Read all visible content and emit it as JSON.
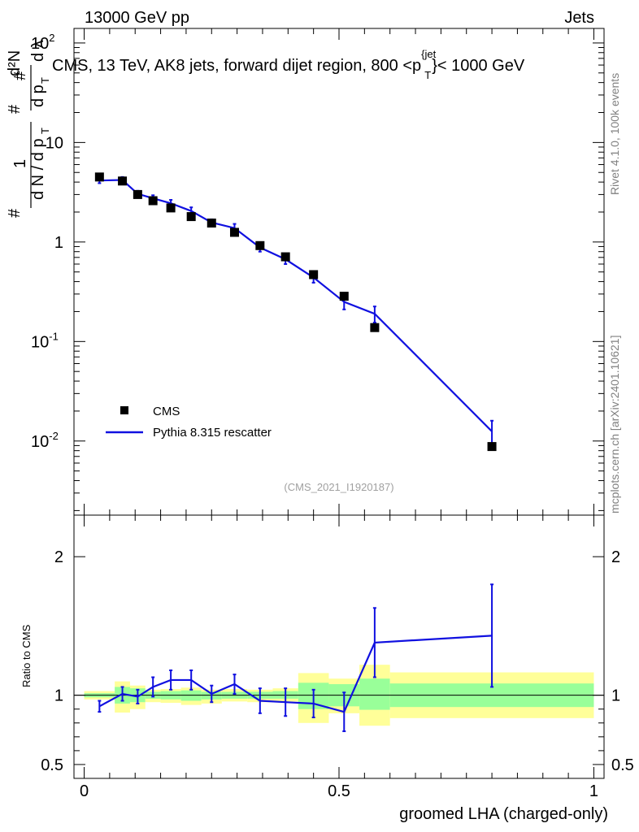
{
  "header": {
    "beam_label": "13000 GeV pp",
    "process_label": "Jets"
  },
  "side": {
    "rivet_label": "Rivet 4.1.0,  100k events",
    "source_label": "mcplots.cern.ch [arXiv:2401.10621]"
  },
  "colors": {
    "mc": "#1010e0",
    "data": "#000000",
    "band_inner": "#99ff99",
    "band_outer": "#ffff99"
  },
  "chart_data": [
    {
      "type": "scatter",
      "title": "CMS, 13 TeV, AK8 jets, forward dijet region, 800 <p_T^{jet}< 1000 GeV",
      "title_main": "CMS, 13 TeV, AK8 jets, forward dijet region, 800 <p",
      "title_sup": "{jet",
      "title_sub": "T",
      "title_tail": "}< 1000 GeV",
      "watermark": "(CMS_2021_I1920187)",
      "ylabel": "1/dN/dp_T # d^2N/(dp_T dλ)",
      "yscale": "log",
      "ylim": [
        0.0018,
        140
      ],
      "xlim": [
        -0.02,
        1.02
      ],
      "ytick_labels": [
        {
          "value": 0.01,
          "base": "10",
          "exp": "-2"
        },
        {
          "value": 0.1,
          "base": "10",
          "exp": "-1"
        },
        {
          "value": 1,
          "base": "1",
          "exp": ""
        },
        {
          "value": 10,
          "base": "10",
          "exp": ""
        },
        {
          "value": 100,
          "base": "10",
          "exp": "2"
        }
      ],
      "legend": [
        {
          "name": "CMS",
          "style": "marker"
        },
        {
          "name": "Pythia 8.315 rescatter",
          "style": "line"
        }
      ],
      "series": [
        {
          "name": "CMS",
          "x": [
            0.03,
            0.075,
            0.105,
            0.135,
            0.17,
            0.21,
            0.25,
            0.295,
            0.345,
            0.395,
            0.45,
            0.51,
            0.57,
            0.8
          ],
          "y": [
            4.5,
            4.1,
            3.0,
            2.6,
            2.2,
            1.8,
            1.55,
            1.25,
            0.92,
            0.71,
            0.47,
            0.285,
            0.138,
            0.0088
          ]
        },
        {
          "name": "Pythia 8.315 rescatter",
          "x": [
            0.03,
            0.075,
            0.105,
            0.135,
            0.17,
            0.21,
            0.25,
            0.295,
            0.345,
            0.395,
            0.45,
            0.51,
            0.57,
            0.8
          ],
          "y": [
            4.15,
            4.2,
            3.05,
            2.75,
            2.45,
            2.05,
            1.57,
            1.38,
            0.88,
            0.67,
            0.44,
            0.25,
            0.19,
            0.0125
          ],
          "yerr": [
            0.25,
            0.3,
            0.22,
            0.2,
            0.2,
            0.18,
            0.12,
            0.14,
            0.08,
            0.07,
            0.05,
            0.04,
            0.035,
            0.0035
          ]
        }
      ]
    },
    {
      "type": "line",
      "ylabel": "Ratio to CMS",
      "xlabel": "groomed LHA (charged-only)",
      "ylim": [
        0.4,
        2.3
      ],
      "xlim": [
        -0.02,
        1.02
      ],
      "ytick_labels": [
        "0.5",
        "1",
        "2"
      ],
      "ytick_values": [
        0.5,
        1,
        2
      ],
      "xtick_labels": [
        "0",
        "0.5",
        "1"
      ],
      "xtick_values": [
        0,
        0.5,
        1
      ],
      "reference": 1,
      "bins": [
        {
          "lo": 0.0,
          "hi": 0.06,
          "inner": [
            0.985,
            1.015
          ],
          "outer": [
            0.97,
            1.03
          ]
        },
        {
          "lo": 0.06,
          "hi": 0.09,
          "inner": [
            0.94,
            1.06
          ],
          "outer": [
            0.875,
            1.1
          ]
        },
        {
          "lo": 0.09,
          "hi": 0.12,
          "inner": [
            0.95,
            1.05
          ],
          "outer": [
            0.9,
            1.07
          ]
        },
        {
          "lo": 0.12,
          "hi": 0.15,
          "inner": [
            0.975,
            1.025
          ],
          "outer": [
            0.95,
            1.04
          ]
        },
        {
          "lo": 0.15,
          "hi": 0.19,
          "inner": [
            0.97,
            1.03
          ],
          "outer": [
            0.945,
            1.045
          ]
        },
        {
          "lo": 0.19,
          "hi": 0.23,
          "inner": [
            0.96,
            1.035
          ],
          "outer": [
            0.93,
            1.055
          ]
        },
        {
          "lo": 0.23,
          "hi": 0.27,
          "inner": [
            0.97,
            1.025
          ],
          "outer": [
            0.94,
            1.04
          ]
        },
        {
          "lo": 0.27,
          "hi": 0.32,
          "inner": [
            0.975,
            1.025
          ],
          "outer": [
            0.955,
            1.045
          ]
        },
        {
          "lo": 0.32,
          "hi": 0.37,
          "inner": [
            0.975,
            1.025
          ],
          "outer": [
            0.95,
            1.04
          ]
        },
        {
          "lo": 0.37,
          "hi": 0.42,
          "inner": [
            0.975,
            1.03
          ],
          "outer": [
            0.955,
            1.05
          ]
        },
        {
          "lo": 0.42,
          "hi": 0.48,
          "inner": [
            0.9,
            1.09
          ],
          "outer": [
            0.8,
            1.16
          ]
        },
        {
          "lo": 0.48,
          "hi": 0.54,
          "inner": [
            0.92,
            1.08
          ],
          "outer": [
            0.87,
            1.12
          ]
        },
        {
          "lo": 0.54,
          "hi": 0.6,
          "inner": [
            0.895,
            1.12
          ],
          "outer": [
            0.78,
            1.22
          ]
        },
        {
          "lo": 0.6,
          "hi": 1.0,
          "inner": [
            0.915,
            1.085
          ],
          "outer": [
            0.835,
            1.165
          ]
        }
      ],
      "series": [
        {
          "name": "Pythia 8.315 rescatter / CMS",
          "x": [
            0.03,
            0.075,
            0.105,
            0.135,
            0.17,
            0.21,
            0.25,
            0.295,
            0.345,
            0.395,
            0.45,
            0.51,
            0.57,
            0.8
          ],
          "y": [
            0.92,
            1.01,
            0.99,
            1.06,
            1.11,
            1.11,
            1.01,
            1.08,
            0.96,
            0.95,
            0.94,
            0.88,
            1.38,
            1.43
          ],
          "yerr": [
            0.04,
            0.05,
            0.05,
            0.07,
            0.07,
            0.07,
            0.06,
            0.07,
            0.09,
            0.1,
            0.1,
            0.14,
            0.25,
            0.37
          ]
        }
      ]
    }
  ]
}
